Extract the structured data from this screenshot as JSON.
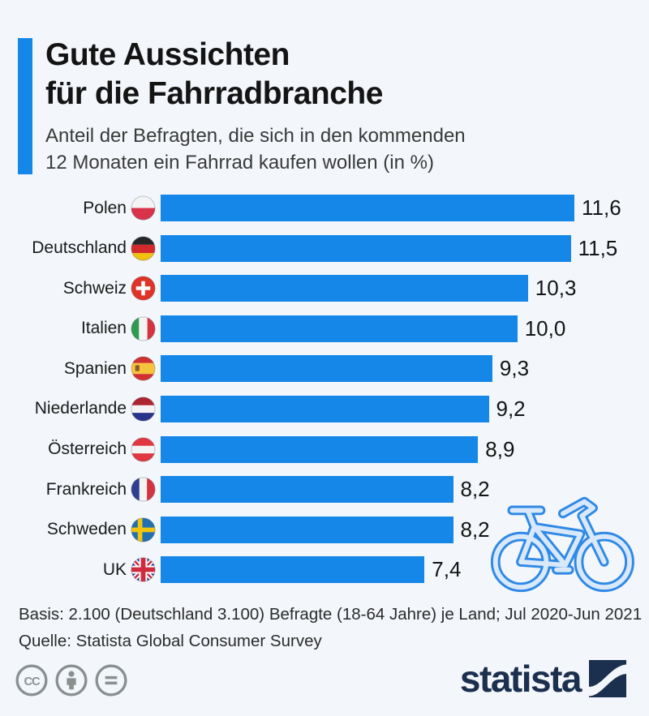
{
  "colors": {
    "background": "#f3f6fa",
    "bar_blue": "#1487e8",
    "accent_blue": "#1487e8",
    "title_text": "#141414",
    "subtitle_text": "#3a3a3a",
    "footer_text": "#2b2b2b",
    "logo_navy": "#1b2f4e",
    "license_gray": "#8a9090",
    "bike_outline_blue": "#2f89e6",
    "bike_fill_light": "#d9e9fb"
  },
  "header": {
    "title_line1": "Gute Aussichten",
    "title_line2": "für die Fahrradbranche",
    "subtitle_line1": "Anteil der Befragten, die sich in den kommenden",
    "subtitle_line2": "12 Monaten ein Fahrrad kaufen wollen (in %)"
  },
  "chart_data": {
    "type": "bar",
    "orientation": "horizontal",
    "title": "Gute Aussichten für die Fahrradbranche",
    "subtitle": "Anteil der Befragten, die sich in den kommenden 12 Monaten ein Fahrrad kaufen wollen (in %)",
    "categories": [
      "Polen",
      "Deutschland",
      "Schweiz",
      "Italien",
      "Spanien",
      "Niederlande",
      "Österreich",
      "Frankreich",
      "Schweden",
      "UK"
    ],
    "values": [
      11.6,
      11.5,
      10.3,
      10.0,
      9.3,
      9.2,
      8.9,
      8.2,
      8.2,
      7.4
    ],
    "value_labels": [
      "11,6",
      "11,5",
      "10,3",
      "10,0",
      "9,3",
      "9,2",
      "8,9",
      "8,2",
      "8,2",
      "7,4"
    ],
    "flags": [
      "pl",
      "de",
      "ch",
      "it",
      "es",
      "nl",
      "at",
      "fr",
      "se",
      "uk"
    ],
    "unit": "%",
    "xlim": [
      0,
      11.6
    ],
    "grid": false,
    "bar_color": "#1487e8",
    "legend": "none"
  },
  "footer": {
    "basis": "Basis: 2.100 (Deutschland 3.100) Befragte (18-64 Jahre) je Land; Jul 2020-Jun 2021",
    "source": "Quelle: Statista Global Consumer Survey"
  },
  "license": {
    "icons": [
      "cc",
      "by",
      "nd"
    ]
  },
  "branding": {
    "wordmark": "statista",
    "logo_icon": "statista-swoosh"
  }
}
